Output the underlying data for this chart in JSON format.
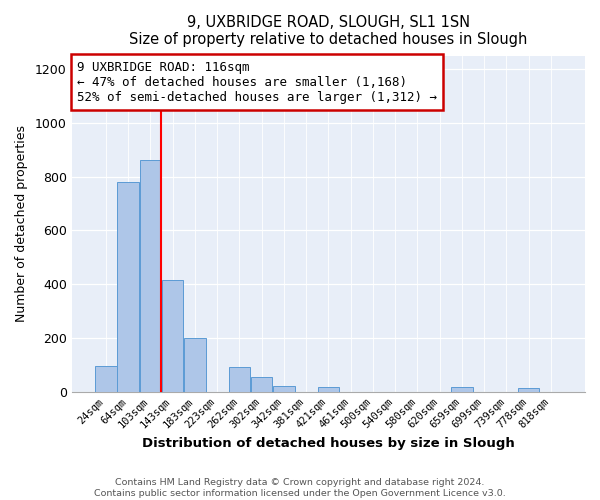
{
  "title": "9, UXBRIDGE ROAD, SLOUGH, SL1 1SN",
  "subtitle": "Size of property relative to detached houses in Slough",
  "xlabel": "Distribution of detached houses by size in Slough",
  "ylabel": "Number of detached properties",
  "bar_labels": [
    "24sqm",
    "64sqm",
    "103sqm",
    "143sqm",
    "183sqm",
    "223sqm",
    "262sqm",
    "302sqm",
    "342sqm",
    "381sqm",
    "421sqm",
    "461sqm",
    "500sqm",
    "540sqm",
    "580sqm",
    "620sqm",
    "659sqm",
    "699sqm",
    "739sqm",
    "778sqm",
    "818sqm"
  ],
  "bar_values": [
    95,
    780,
    860,
    415,
    200,
    0,
    90,
    55,
    20,
    0,
    18,
    0,
    0,
    0,
    0,
    0,
    17,
    0,
    0,
    13,
    0
  ],
  "bar_color": "#aec6e8",
  "bar_edgecolor": "#5b9bd5",
  "vline_color": "red",
  "annotation_title": "9 UXBRIDGE ROAD: 116sqm",
  "annotation_line1": "← 47% of detached houses are smaller (1,168)",
  "annotation_line2": "52% of semi-detached houses are larger (1,312) →",
  "annotation_box_color": "#ffffff",
  "annotation_box_edgecolor": "#cc0000",
  "ylim": [
    0,
    1250
  ],
  "yticks": [
    0,
    200,
    400,
    600,
    800,
    1000,
    1200
  ],
  "footer1": "Contains HM Land Registry data © Crown copyright and database right 2024.",
  "footer2": "Contains public sector information licensed under the Open Government Licence v3.0."
}
